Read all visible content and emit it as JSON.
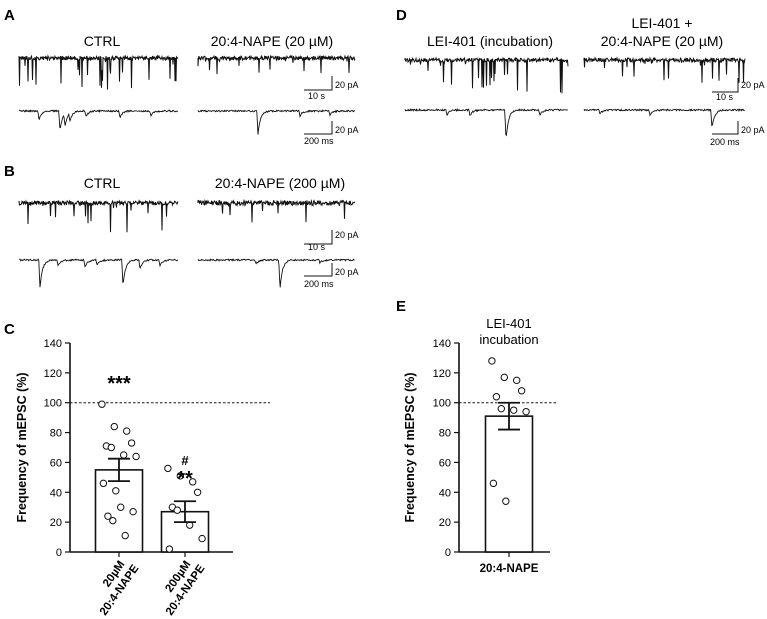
{
  "figure": {
    "panels": {
      "A": {
        "letter": "A",
        "titles": [
          "CTRL",
          "20:4-NAPE (20 µM)"
        ],
        "scale_upper": {
          "x": "10 s",
          "y": "20 pA"
        },
        "scale_lower": {
          "x": "200 ms",
          "y": "20 pA"
        }
      },
      "B": {
        "letter": "B",
        "titles": [
          "CTRL",
          "20:4-NAPE (200 µM)"
        ],
        "scale_upper": {
          "x": "10 s",
          "y": "20 pA"
        },
        "scale_lower": {
          "x": "200 ms",
          "y": "20 pA"
        }
      },
      "D": {
        "letter": "D",
        "titles": [
          "LEI-401 (incubation)",
          "LEI-401 +",
          "20:4-NAPE (20 µM)"
        ],
        "scale_upper": {
          "x": "10 s",
          "y": "20 pA"
        },
        "scale_lower": {
          "x": "200 ms",
          "y": "20 pA"
        }
      },
      "C": {
        "letter": "C"
      },
      "E": {
        "letter": "E"
      }
    },
    "colors": {
      "trace": "#111111",
      "bar_fill": "#ffffff",
      "axis": "#111111"
    }
  },
  "chart_data": [
    {
      "panel": "C",
      "type": "bar",
      "ylabel": "Frequency of mEPSC (%)",
      "ylim": [
        0,
        140
      ],
      "yticks": [
        0,
        20,
        40,
        60,
        80,
        100,
        120,
        140
      ],
      "reference_line": 100,
      "categories": [
        [
          "20µM",
          "20:4-NAPE"
        ],
        [
          "200µM",
          "20:4-NAPE"
        ]
      ],
      "values": [
        55,
        27
      ],
      "sem": [
        7.5,
        7
      ],
      "significance": [
        [
          "***"
        ],
        [
          "#",
          "**"
        ]
      ],
      "points": [
        [
          99,
          84,
          81,
          73,
          71,
          70,
          65,
          64,
          46,
          41,
          30,
          27,
          24,
          21,
          11
        ],
        [
          56,
          51,
          47,
          40,
          30,
          28,
          18,
          9,
          2
        ]
      ]
    },
    {
      "panel": "E",
      "type": "bar",
      "title": [
        "LEI-401",
        "incubation"
      ],
      "ylabel": "Frequency of mEPSC (%)",
      "ylim": [
        0,
        140
      ],
      "yticks": [
        0,
        20,
        40,
        60,
        80,
        100,
        120,
        140
      ],
      "reference_line": 100,
      "categories": [
        [
          "20:4-NAPE"
        ]
      ],
      "values": [
        91
      ],
      "sem": [
        9
      ],
      "points": [
        [
          128,
          117,
          115,
          108,
          104,
          96,
          95,
          94,
          46,
          34
        ]
      ]
    }
  ]
}
